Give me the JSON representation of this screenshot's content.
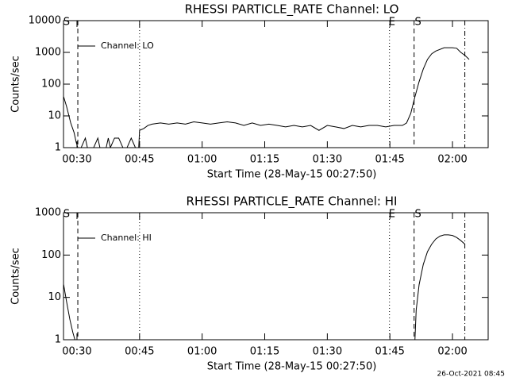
{
  "chart_data": [
    {
      "type": "line",
      "title": "RHESSI PARTICLE_RATE Channel: LO",
      "x_label": "Start Time (28-May-15 00:27:50)",
      "y_label": "Counts/sec",
      "log_y": true,
      "xlim": [
        26.77,
        128.55
      ],
      "xticks": [
        {
          "value": 30,
          "label": "00:30"
        },
        {
          "value": 45,
          "label": "00:45"
        },
        {
          "value": 60,
          "label": "01:00"
        },
        {
          "value": 75,
          "label": "01:15"
        },
        {
          "value": 90,
          "label": "01:30"
        },
        {
          "value": 105,
          "label": "01:45"
        },
        {
          "value": 120,
          "label": "02:00"
        }
      ],
      "ylim": [
        1,
        10000
      ],
      "yticks": [
        1,
        10,
        100,
        1000,
        10000
      ],
      "series": [
        {
          "name": "Channel: LO",
          "color": "#000000",
          "x": [
            26.8,
            27.5,
            28.5,
            29.3,
            29.8,
            30.2,
            31,
            32,
            32.5,
            34,
            35,
            35.5,
            37,
            37.5,
            38,
            39,
            40,
            41,
            42,
            43,
            44,
            44.8,
            45,
            46,
            47,
            48,
            50,
            52,
            54,
            56,
            58,
            60,
            62,
            64,
            66,
            68,
            70,
            72,
            74,
            76,
            78,
            80,
            82,
            84,
            86,
            88,
            90,
            92,
            94,
            96,
            98,
            100,
            102,
            104,
            106,
            108,
            109,
            110,
            111,
            112,
            113,
            114,
            115,
            116,
            118,
            120,
            121,
            122,
            123,
            124
          ],
          "values": [
            40,
            20,
            6,
            3,
            1.5,
            1,
            1,
            2,
            1,
            1,
            2,
            1,
            1,
            2,
            1,
            2,
            2,
            1,
            1,
            2,
            1,
            1,
            3.5,
            4,
            5,
            5.5,
            6,
            5.5,
            6,
            5.5,
            6.5,
            6,
            5.5,
            6,
            6.5,
            6,
            5,
            6,
            5,
            5.5,
            5,
            4.5,
            5,
            4.5,
            5,
            3.5,
            5,
            4.5,
            4,
            5,
            4.5,
            5,
            5,
            4.5,
            5,
            5,
            6,
            12,
            40,
            120,
            300,
            600,
            900,
            1100,
            1400,
            1400,
            1350,
            1000,
            800,
            600
          ]
        }
      ],
      "events": [
        {
          "x": 30.2,
          "style": "dashed"
        },
        {
          "x": 45.0,
          "style": "dotted"
        },
        {
          "x": 104.9,
          "style": "dotted"
        },
        {
          "x": 110.8,
          "style": "dashed"
        },
        {
          "x": 122.96,
          "style": "dashdot"
        }
      ],
      "event_labels": [
        {
          "x": 27.5,
          "text": "S"
        },
        {
          "x": 105.5,
          "text": "E"
        },
        {
          "x": 111.75,
          "text": "S"
        }
      ]
    },
    {
      "type": "line",
      "title": "RHESSI PARTICLE_RATE Channel: HI",
      "x_label": "Start Time (28-May-15 00:27:50)",
      "y_label": "Counts/sec",
      "log_y": true,
      "xlim": [
        26.77,
        128.55
      ],
      "xticks": [
        {
          "value": 30,
          "label": "00:30"
        },
        {
          "value": 45,
          "label": "00:45"
        },
        {
          "value": 60,
          "label": "01:00"
        },
        {
          "value": 75,
          "label": "01:15"
        },
        {
          "value": 90,
          "label": "01:30"
        },
        {
          "value": 105,
          "label": "01:45"
        },
        {
          "value": 120,
          "label": "02:00"
        }
      ],
      "ylim": [
        1,
        1000
      ],
      "yticks": [
        1,
        10,
        100,
        1000
      ],
      "series": [
        {
          "name": "Channel: HI",
          "color": "#000000",
          "x": [
            26.8,
            27.5,
            28.3,
            29.0,
            29.5,
            30,
            111,
            111.3,
            112,
            113,
            114,
            115,
            116,
            117,
            118,
            119,
            120,
            121,
            122,
            123
          ],
          "values": [
            20,
            8,
            3,
            1.5,
            1,
            null,
            1,
            5,
            20,
            60,
            120,
            180,
            240,
            280,
            300,
            300,
            290,
            260,
            220,
            180
          ]
        }
      ],
      "events": [
        {
          "x": 30.2,
          "style": "dashed"
        },
        {
          "x": 45.0,
          "style": "dotted"
        },
        {
          "x": 104.9,
          "style": "dotted"
        },
        {
          "x": 110.8,
          "style": "dashed"
        },
        {
          "x": 122.96,
          "style": "dashdot"
        }
      ],
      "event_labels": [
        {
          "x": 27.5,
          "text": "S"
        },
        {
          "x": 105.5,
          "text": "E"
        },
        {
          "x": 111.75,
          "text": "S"
        }
      ]
    }
  ],
  "footer": "26-Oct-2021 08:45"
}
